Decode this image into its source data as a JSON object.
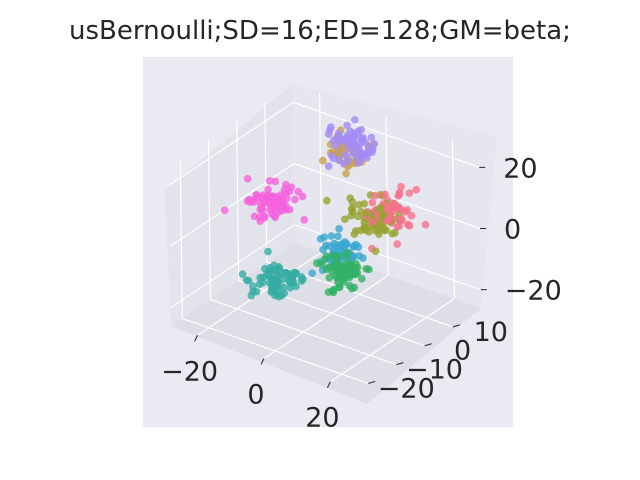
{
  "chart_data": {
    "type": "scatter",
    "title": "usBernoulli;SD=16;ED=128;GM=beta;",
    "xlabel": "",
    "ylabel": "",
    "zlabel": "",
    "xticks": [
      "−20",
      "0",
      "20"
    ],
    "yticks": [
      "−20",
      "−10",
      "0",
      "10"
    ],
    "zticks": [
      "−20",
      "0",
      "20"
    ],
    "xlim": [
      -28,
      28
    ],
    "ylim": [
      -24,
      20
    ],
    "zlim": [
      -26,
      26
    ],
    "grid": true,
    "background": "#eaeaf2",
    "series": [
      {
        "color": "#a48cf4",
        "center": [
          -4,
          12,
          20
        ],
        "spread": [
          3.2,
          2.5,
          2.5
        ],
        "n": 70
      },
      {
        "color": "#c9a24a",
        "center": [
          -6,
          14,
          16
        ],
        "spread": [
          3.0,
          2.2,
          2.5
        ],
        "n": 40
      },
      {
        "color": "#f77189",
        "center": [
          12,
          8,
          6
        ],
        "spread": [
          3.0,
          2.5,
          3.0
        ],
        "n": 60
      },
      {
        "color": "#97a431",
        "center": [
          8,
          6,
          4
        ],
        "spread": [
          3.2,
          2.5,
          3.0
        ],
        "n": 70
      },
      {
        "color": "#f561dd",
        "center": [
          -22,
          4,
          0
        ],
        "spread": [
          3.5,
          2.5,
          2.5
        ],
        "n": 70
      },
      {
        "color": "#39a7d0",
        "center": [
          5,
          -2,
          -3
        ],
        "spread": [
          2.5,
          2.2,
          2.2
        ],
        "n": 60
      },
      {
        "color": "#32b166",
        "center": [
          12,
          -10,
          -2
        ],
        "spread": [
          3.0,
          2.5,
          2.5
        ],
        "n": 70
      },
      {
        "color": "#36ada4",
        "center": [
          -6,
          -12,
          -10
        ],
        "spread": [
          3.2,
          2.5,
          2.5
        ],
        "n": 70
      }
    ]
  }
}
